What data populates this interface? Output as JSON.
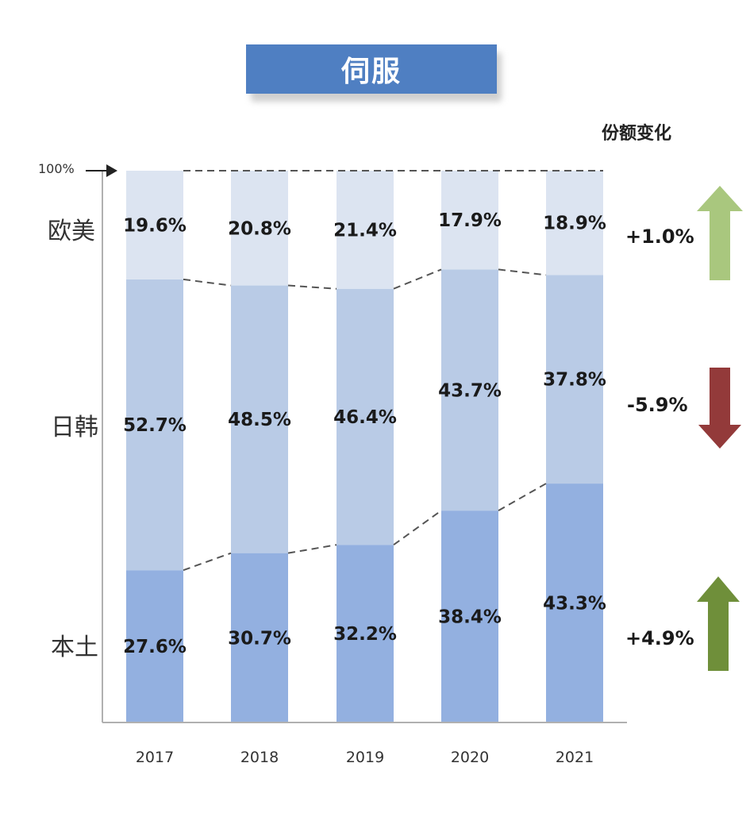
{
  "title": "伺服",
  "change_header": "份额变化",
  "y_top_label": "100%",
  "segment_names": [
    "欧美",
    "日韩",
    "本土"
  ],
  "chart_data": {
    "type": "bar",
    "stacked": true,
    "categories": [
      "2017",
      "2018",
      "2019",
      "2020",
      "2021"
    ],
    "ylim": [
      0,
      100
    ],
    "series": [
      {
        "name": "本土",
        "values": [
          27.6,
          30.7,
          32.2,
          38.4,
          43.3
        ],
        "color": "#93b0e0"
      },
      {
        "name": "日韩",
        "values": [
          52.7,
          48.5,
          46.4,
          43.7,
          37.8
        ],
        "color": "#b9cbe6"
      },
      {
        "name": "欧美",
        "values": [
          19.6,
          20.8,
          21.4,
          17.9,
          18.9
        ],
        "color": "#dce4f1"
      }
    ],
    "labels": [
      [
        "27.6%",
        "30.7%",
        "32.2%",
        "38.4%",
        "43.3%"
      ],
      [
        "52.7%",
        "48.5%",
        "46.4%",
        "43.7%",
        "37.8%"
      ],
      [
        "19.6%",
        "20.8%",
        "21.4%",
        "17.9%",
        "18.9%"
      ]
    ]
  },
  "changes": [
    {
      "series": "欧美",
      "label": "+1.0%",
      "direction": "up",
      "color": "#a9c77e"
    },
    {
      "series": "日韩",
      "label": "-5.9%",
      "direction": "down",
      "color": "#933a3a"
    },
    {
      "series": "本土",
      "label": "+4.9%",
      "direction": "up",
      "color": "#6f8f3a"
    }
  ]
}
